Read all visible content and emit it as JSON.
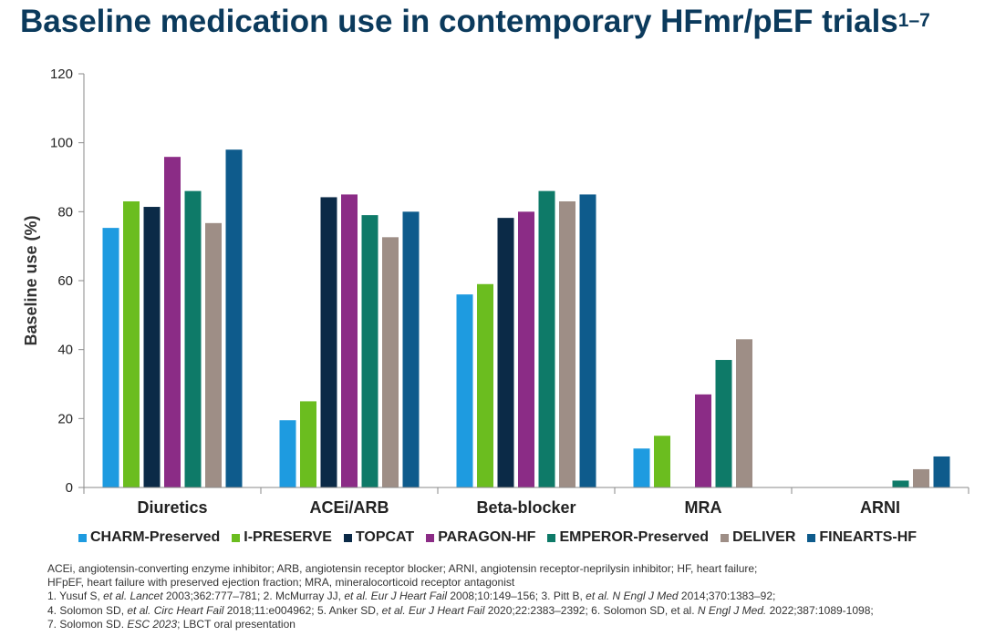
{
  "title": {
    "main": "Baseline medication use in contemporary HFmr/pEF trials",
    "sup": "1–7"
  },
  "chart_data": {
    "type": "bar",
    "categories": [
      "Diuretics",
      "ACEi/ARB",
      "Beta-blocker",
      "MRA",
      "ARNI"
    ],
    "series": [
      {
        "name": "CHARM-Preserved",
        "color": "#1e9be0",
        "values": [
          75.3,
          19.5,
          56,
          11.3,
          null
        ]
      },
      {
        "name": "I-PRESERVE",
        "color": "#6bbd1f",
        "values": [
          83,
          25,
          59,
          15,
          null
        ]
      },
      {
        "name": "TOPCAT",
        "color": "#0b2a47",
        "values": [
          81.4,
          84.2,
          78.2,
          null,
          null
        ]
      },
      {
        "name": "PARAGON-HF",
        "color": "#8b2c86",
        "values": [
          95.9,
          85,
          80,
          27,
          null
        ]
      },
      {
        "name": "EMPEROR-Preserved",
        "color": "#0e7a68",
        "values": [
          86,
          79,
          86,
          37,
          2
        ]
      },
      {
        "name": "DELIVER",
        "color": "#9e8e86",
        "values": [
          76.7,
          72.6,
          83,
          43,
          5.3
        ]
      },
      {
        "name": "FINEARTS-HF",
        "color": "#0e5b8c",
        "values": [
          98,
          80,
          85,
          null,
          9
        ]
      }
    ],
    "ylabel": "Baseline use (%)",
    "ylim": [
      0,
      120
    ],
    "yticks": [
      "0",
      "20",
      "40",
      "60",
      "80",
      "100",
      "120"
    ],
    "grid": false,
    "legend": "bottom"
  },
  "footnotes": {
    "line1": "ACEi, angiotensin-converting enzyme inhibitor; ARB, angiotensin receptor blocker; ARNI, angiotensin receptor-neprilysin inhibitor; HF, heart failure;",
    "line2": "HFpEF, heart failure with preserved ejection fraction; MRA, mineralocorticoid receptor antagonist",
    "ref1_a": "1. Yusuf S, ",
    "ref1_b": "et al. Lancet",
    "ref1_c": " 2003;362:777–781; 2. McMurray JJ, ",
    "ref1_d": "et al. Eur J Heart Fail",
    "ref1_e": " 2008;10:149–156; 3. Pitt B, ",
    "ref1_f": "et al. N Engl J Med",
    "ref1_g": " 2014;370:1383–92;",
    "ref2_a": "4. Solomon SD, ",
    "ref2_b": "et al. Circ Heart Fail",
    "ref2_c": " 2018;11:e004962; 5. Anker SD, ",
    "ref2_d": "et al. Eur J Heart Fail",
    "ref2_e": " 2020;22:2383–2392; 6. Solomon SD, et al. ",
    "ref2_f": "N Engl J Med.",
    "ref2_g": " 2022;387:1089-1098;",
    "ref3_a": "7. Solomon SD. ",
    "ref3_b": "ESC 2023",
    "ref3_c": "; LBCT oral presentation"
  }
}
